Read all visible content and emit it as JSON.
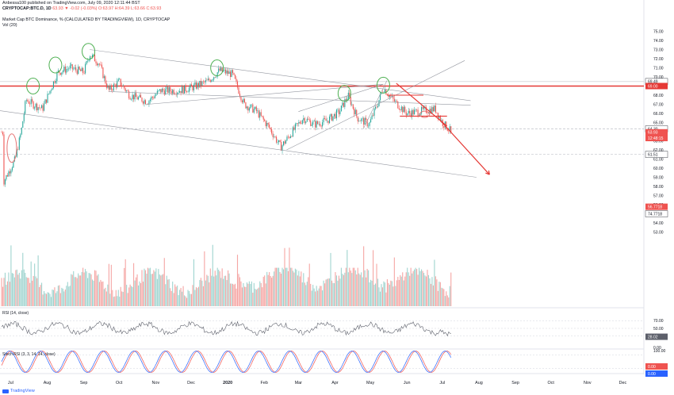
{
  "header": {
    "publish_line": "Anbessa100 published on TradingView.com, July 09, 2020 12:11:44 BST",
    "symbol": "CRYPTOCAP:BTC.D, 1D",
    "ohlc": "63.93 ▼ -0.02 (-0.03%) O:63.97 H:64.39 L:63.66 C:63.93",
    "series_title": "Market Cap BTC Dominance, % (CALCULATED BY TRADINGVIEW), 1D, CRYPTOCAP",
    "vol_label": "Vol (20)"
  },
  "footer": {
    "logo_text": "TradingView"
  },
  "chart_data": {
    "type": "candlestick",
    "x_ticks": [
      "Jul",
      "Aug",
      "Sep",
      "Oct",
      "Nov",
      "Dec",
      "2020",
      "Feb",
      "Mar",
      "Apr",
      "May",
      "Jun",
      "Jul",
      "Aug",
      "Sep",
      "Oct",
      "Nov",
      "Dec"
    ],
    "bold_ticks": [
      "2020"
    ],
    "price_axis": {
      "ticks": [
        "75.00",
        "74.00",
        "73.00",
        "72.00",
        "71.00",
        "70.00",
        "69.00",
        "68.00",
        "67.00",
        "66.00",
        "65.00",
        "64.00",
        "63.00",
        "62.00",
        "61.00",
        "60.00",
        "59.00",
        "58.00",
        "57.00",
        "56.00",
        "55.00",
        "54.00",
        "53.00"
      ],
      "labels": [
        {
          "value": 69.49,
          "text": "69.49",
          "color": "#131722"
        },
        {
          "value": 69.0,
          "text": "69.00",
          "color": "#e53935"
        },
        {
          "value": 64.3,
          "text": "64.30",
          "color": "#131722"
        },
        {
          "value": 63.93,
          "text": "63.93",
          "color": "#ef5350"
        },
        {
          "value": 63.3,
          "text": "12:48:15",
          "color": "#ef5350"
        },
        {
          "value": 61.51,
          "text": "61.51",
          "color": "#131722"
        },
        {
          "value": 55.77,
          "text": "56.7718",
          "color": "#ef5350"
        },
        {
          "value": 55.0,
          "text": "74.7718",
          "color": "#131722"
        }
      ]
    },
    "price_path_points": [
      [
        "2019-06-25",
        58.5
      ],
      [
        "2019-07-05",
        61
      ],
      [
        "2019-07-10",
        64
      ],
      [
        "2019-07-14",
        67.5
      ],
      [
        "2019-07-20",
        67
      ],
      [
        "2019-07-28",
        66.5
      ],
      [
        "2019-08-05",
        69
      ],
      [
        "2019-08-10",
        70.5
      ],
      [
        "2019-08-20",
        71
      ],
      [
        "2019-09-01",
        70.5
      ],
      [
        "2019-09-06",
        72.5
      ],
      [
        "2019-09-14",
        71.5
      ],
      [
        "2019-09-22",
        68.5
      ],
      [
        "2019-10-01",
        69.5
      ],
      [
        "2019-10-10",
        68
      ],
      [
        "2019-10-25",
        67.3
      ],
      [
        "2019-11-05",
        68.5
      ],
      [
        "2019-11-20",
        68.5
      ],
      [
        "2019-12-01",
        68.8
      ],
      [
        "2019-12-15",
        69.5
      ],
      [
        "2019-12-25",
        70.7
      ],
      [
        "2020-01-05",
        70.3
      ],
      [
        "2020-01-15",
        67
      ],
      [
        "2020-01-25",
        66.3
      ],
      [
        "2020-02-05",
        64.5
      ],
      [
        "2020-02-15",
        62.3
      ],
      [
        "2020-02-25",
        64
      ],
      [
        "2020-03-05",
        65.5
      ],
      [
        "2020-03-15",
        64.8
      ],
      [
        "2020-03-25",
        65.2
      ],
      [
        "2020-04-05",
        66.2
      ],
      [
        "2020-04-12",
        68
      ],
      [
        "2020-04-20",
        65.5
      ],
      [
        "2020-04-30",
        64.8
      ],
      [
        "2020-05-07",
        67
      ],
      [
        "2020-05-12",
        68.8
      ],
      [
        "2020-05-20",
        67.5
      ],
      [
        "2020-06-01",
        66
      ],
      [
        "2020-06-15",
        66.3
      ],
      [
        "2020-06-25",
        66.5
      ],
      [
        "2020-07-01",
        65
      ],
      [
        "2020-07-09",
        63.93
      ]
    ],
    "last_close": 63.93,
    "horizontal_levels": [
      {
        "value": 69.49,
        "color": "#b2b5be",
        "style": "solid"
      },
      {
        "value": 69.0,
        "color": "#e53935",
        "style": "bold"
      },
      {
        "value": 64.3,
        "color": "#b2b5be",
        "style": "dashed"
      },
      {
        "value": 61.51,
        "color": "#b2b5be",
        "style": "dashed"
      }
    ],
    "panels": [
      "price",
      "volume",
      "RSI (14, close)",
      "Stoch RSI (3, 3, 14, 14, close)"
    ],
    "rsi": {
      "label": "RSI (14, close)",
      "ticks": [
        "70.00",
        "50.00",
        "30.00",
        "0.00"
      ],
      "last_value": "28.02"
    },
    "stoch_rsi": {
      "label": "Stoch RSI (3, 3, 14, 14, close)",
      "ticks": [
        "100.00",
        "0.00"
      ],
      "last_values": [
        "0.00",
        "0.00"
      ]
    },
    "colors": {
      "up": "#26a69a",
      "down": "#ef5350",
      "vol_up": "#9fd4cf",
      "vol_down": "#f5a5a3",
      "level": "#e53935",
      "arrow": "#e53935",
      "ring_green": "#4caf50",
      "ring_red": "#e57373"
    },
    "annotations": [
      "green circles on major tops",
      "red circle at July 2019 breakout",
      "red projected downtrend arrow toward ~59"
    ]
  }
}
